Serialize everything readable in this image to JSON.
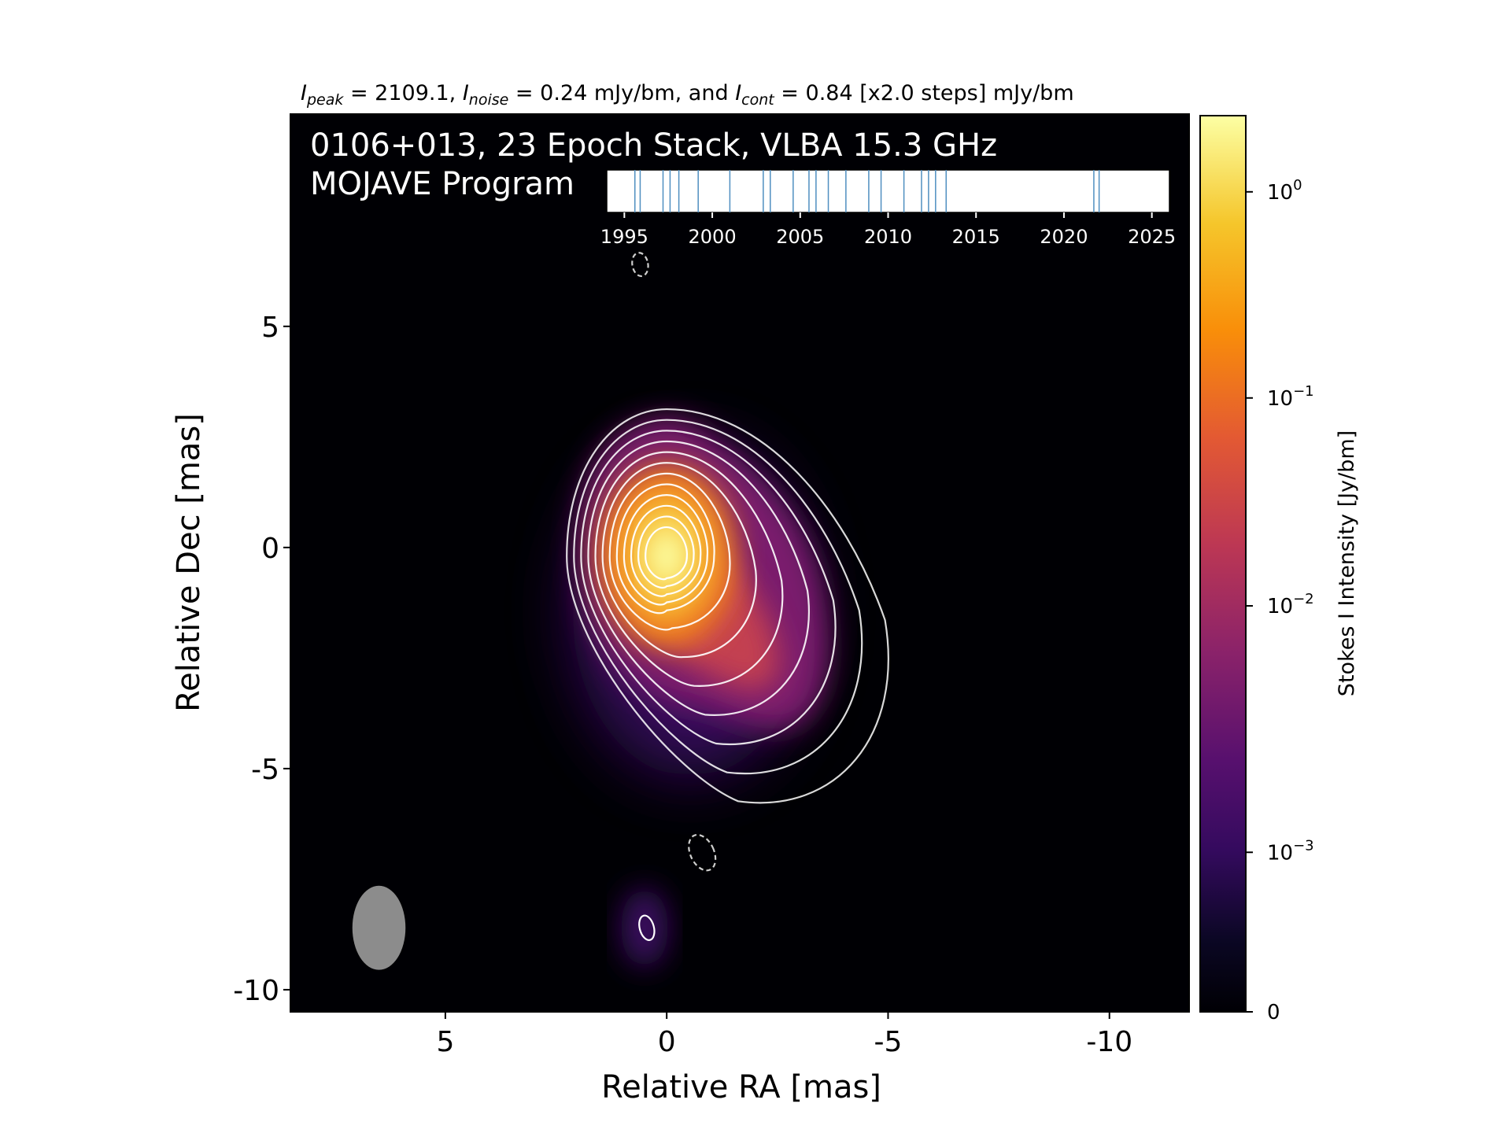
{
  "chart_data": {
    "type": "heatmap",
    "header": {
      "peak_label": "peak",
      "peak_value": "2109.1",
      "noise_label": "noise",
      "noise_value": "0.24 mJy/bm, and",
      "cont_label": "cont",
      "cont_value": "0.84 [x2.0 steps] mJy/bm"
    },
    "title_line1": "0106+013, 23 Epoch Stack, VLBA 15.3 GHz",
    "title_line2": "MOJAVE Program",
    "xlabel": "Relative RA [mas]",
    "ylabel": "Relative Dec [mas]",
    "xlim": [
      8.5,
      -11.8
    ],
    "ylim": [
      -10.5,
      9.8
    ],
    "xticks": [
      5,
      0,
      -5,
      -10
    ],
    "yticks": [
      5,
      0,
      -5,
      -10
    ],
    "colorbar": {
      "label": "Stokes I Intensity [Jy/bm]",
      "scale": "log",
      "colormap": "inferno",
      "ticks": [
        {
          "label": "10",
          "exp": "0",
          "frac": 0.915
        },
        {
          "label": "10",
          "exp": "−1",
          "frac": 0.685
        },
        {
          "label": "10",
          "exp": "−2",
          "frac": 0.453
        },
        {
          "label": "10",
          "exp": "−3",
          "frac": 0.178
        },
        {
          "label": "0",
          "exp": "",
          "frac": 0.0
        }
      ]
    },
    "peak": {
      "ra": 0.0,
      "dec": -0.2
    },
    "beam": {
      "ra": 6.5,
      "dec": -8.6,
      "major_mas": 1.9,
      "minor_mas": 1.2
    },
    "contours": {
      "levels_mjy_per_bm": [
        0.84,
        1.68,
        3.36,
        6.72,
        13.44,
        26.88,
        53.76,
        107.52,
        215.04,
        430.08,
        860.16,
        1720.32
      ],
      "line_color": "#ffffff",
      "negative_style": "dashed"
    },
    "epochs": {
      "xlim": [
        1994,
        2026
      ],
      "ticks": [
        1995,
        2000,
        2005,
        2010,
        2015,
        2020,
        2025
      ],
      "dates": [
        1995.6,
        1995.9,
        1997.2,
        1997.6,
        1998.1,
        1999.2,
        2001.0,
        2002.9,
        2003.3,
        2004.6,
        2005.5,
        2005.9,
        2006.6,
        2007.6,
        2008.9,
        2009.6,
        2010.9,
        2011.9,
        2012.3,
        2012.7,
        2013.3,
        2021.7,
        2022.0
      ],
      "line_color": "#4f8fc0"
    }
  }
}
